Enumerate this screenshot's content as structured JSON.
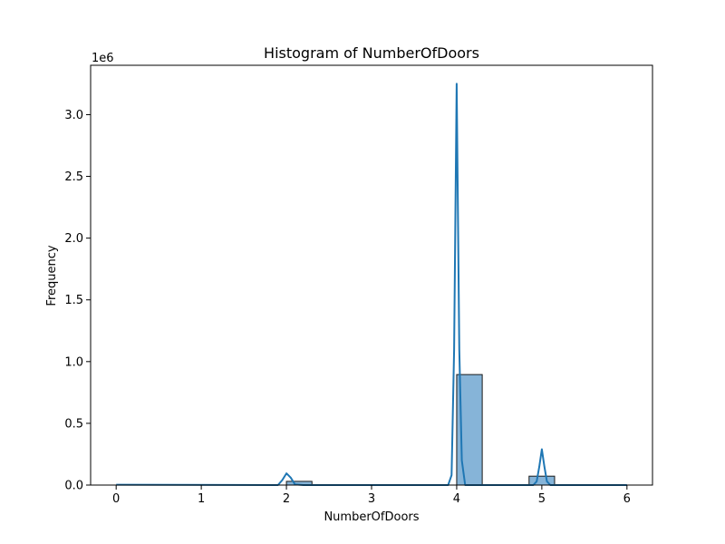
{
  "chart_data": {
    "type": "bar",
    "title": "Histogram of NumberOfDoors",
    "xlabel": "NumberOfDoors",
    "ylabel": "Frequency",
    "y_offset_label": "1e6",
    "xlim": [
      -0.3,
      6.3
    ],
    "ylim": [
      0,
      3.4
    ],
    "x_ticks": [
      0,
      1,
      2,
      3,
      4,
      5,
      6
    ],
    "x_tick_labels": [
      "0",
      "1",
      "2",
      "3",
      "4",
      "5",
      "6"
    ],
    "y_ticks": [
      0.0,
      0.5,
      1.0,
      1.5,
      2.0,
      2.5,
      3.0
    ],
    "y_tick_labels": [
      "0.0",
      "0.5",
      "1.0",
      "1.5",
      "2.0",
      "2.5",
      "3.0"
    ],
    "grid": false,
    "bins": [
      {
        "x0": 2.0,
        "x1": 2.3,
        "value": 0.03
      },
      {
        "x0": 4.0,
        "x1": 4.3,
        "value": 0.895
      },
      {
        "x0": 4.85,
        "x1": 5.15,
        "value": 0.072
      }
    ],
    "kde": {
      "x": [
        0,
        1.9,
        1.95,
        2.0,
        2.05,
        2.1,
        2.2,
        3.9,
        3.94,
        3.97,
        4.0,
        4.03,
        4.06,
        4.1,
        4.9,
        4.94,
        4.97,
        5.0,
        5.03,
        5.06,
        5.1,
        6.0
      ],
      "y": [
        0.003,
        0.0,
        0.04,
        0.095,
        0.06,
        0.005,
        0.0,
        0.0,
        0.08,
        1.1,
        3.25,
        1.1,
        0.2,
        0.0,
        0.0,
        0.03,
        0.15,
        0.29,
        0.15,
        0.03,
        0.0,
        0.0
      ]
    },
    "bar_color": "#86b4d8",
    "bar_edge_color": "#1a1a1a",
    "line_color": "#1f77b4"
  }
}
